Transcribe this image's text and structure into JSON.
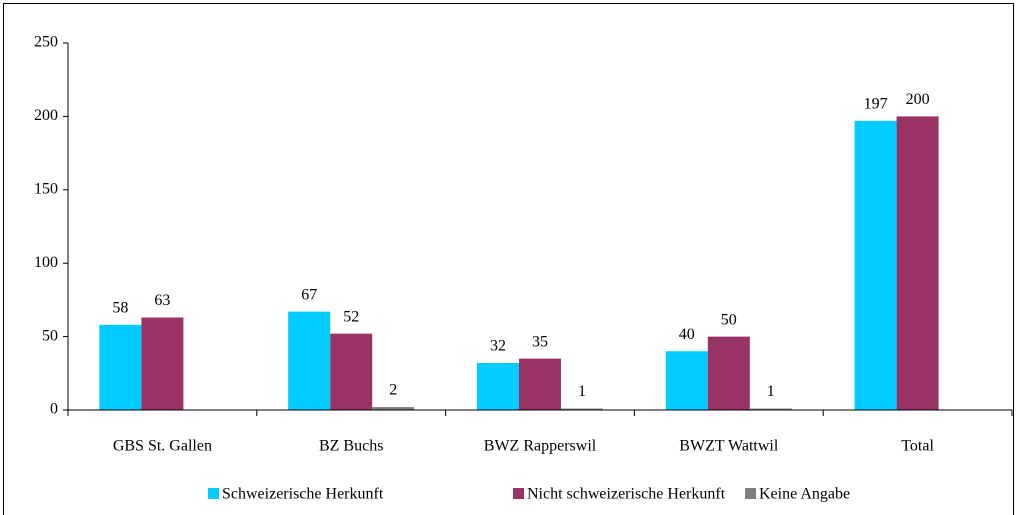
{
  "chart_data": {
    "type": "bar",
    "categories": [
      "GBS St. Gallen",
      "BZ Buchs",
      "BWZ Rapperswil",
      "BWZT Wattwil",
      "Total"
    ],
    "series": [
      {
        "name": "Schweizerische Herkunft",
        "color": "#00ccff",
        "values": [
          58,
          67,
          32,
          40,
          197
        ]
      },
      {
        "name": "Nicht schweizerische Herkunft",
        "color": "#993366",
        "values": [
          63,
          52,
          35,
          50,
          200
        ]
      },
      {
        "name": "Keine Angabe",
        "color": "#808080",
        "values": [
          null,
          2,
          1,
          1,
          null
        ]
      }
    ],
    "ylim": [
      0,
      250
    ],
    "yticks": [
      0,
      50,
      100,
      150,
      200,
      250
    ],
    "legend": "bottom"
  }
}
